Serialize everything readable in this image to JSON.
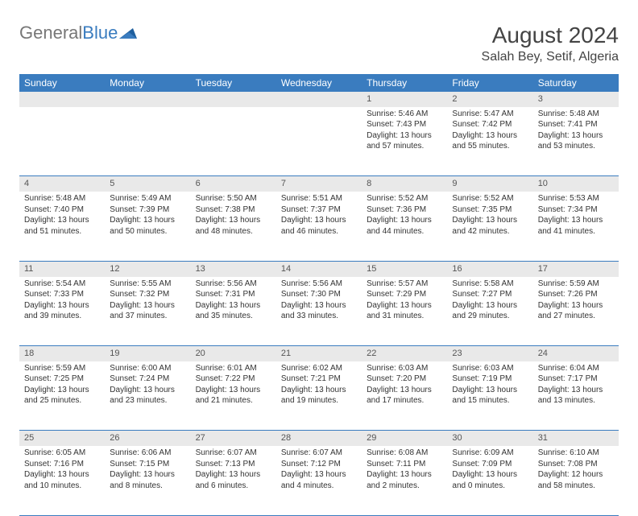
{
  "brand": {
    "part1": "General",
    "part2": "Blue"
  },
  "title": "August 2024",
  "location": "Salah Bey, Setif, Algeria",
  "colors": {
    "header_bg": "#3a7cbf",
    "header_fg": "#ffffff",
    "daynum_bg": "#e9e9e9",
    "rule": "#3a7cbf",
    "text": "#333333",
    "background": "#ffffff"
  },
  "day_headers": [
    "Sunday",
    "Monday",
    "Tuesday",
    "Wednesday",
    "Thursday",
    "Friday",
    "Saturday"
  ],
  "weeks": [
    {
      "nums": [
        "",
        "",
        "",
        "",
        "1",
        "2",
        "3"
      ],
      "cells": [
        null,
        null,
        null,
        null,
        {
          "sunrise": "5:46 AM",
          "sunset": "7:43 PM",
          "daylight": "13 hours and 57 minutes."
        },
        {
          "sunrise": "5:47 AM",
          "sunset": "7:42 PM",
          "daylight": "13 hours and 55 minutes."
        },
        {
          "sunrise": "5:48 AM",
          "sunset": "7:41 PM",
          "daylight": "13 hours and 53 minutes."
        }
      ]
    },
    {
      "nums": [
        "4",
        "5",
        "6",
        "7",
        "8",
        "9",
        "10"
      ],
      "cells": [
        {
          "sunrise": "5:48 AM",
          "sunset": "7:40 PM",
          "daylight": "13 hours and 51 minutes."
        },
        {
          "sunrise": "5:49 AM",
          "sunset": "7:39 PM",
          "daylight": "13 hours and 50 minutes."
        },
        {
          "sunrise": "5:50 AM",
          "sunset": "7:38 PM",
          "daylight": "13 hours and 48 minutes."
        },
        {
          "sunrise": "5:51 AM",
          "sunset": "7:37 PM",
          "daylight": "13 hours and 46 minutes."
        },
        {
          "sunrise": "5:52 AM",
          "sunset": "7:36 PM",
          "daylight": "13 hours and 44 minutes."
        },
        {
          "sunrise": "5:52 AM",
          "sunset": "7:35 PM",
          "daylight": "13 hours and 42 minutes."
        },
        {
          "sunrise": "5:53 AM",
          "sunset": "7:34 PM",
          "daylight": "13 hours and 41 minutes."
        }
      ]
    },
    {
      "nums": [
        "11",
        "12",
        "13",
        "14",
        "15",
        "16",
        "17"
      ],
      "cells": [
        {
          "sunrise": "5:54 AM",
          "sunset": "7:33 PM",
          "daylight": "13 hours and 39 minutes."
        },
        {
          "sunrise": "5:55 AM",
          "sunset": "7:32 PM",
          "daylight": "13 hours and 37 minutes."
        },
        {
          "sunrise": "5:56 AM",
          "sunset": "7:31 PM",
          "daylight": "13 hours and 35 minutes."
        },
        {
          "sunrise": "5:56 AM",
          "sunset": "7:30 PM",
          "daylight": "13 hours and 33 minutes."
        },
        {
          "sunrise": "5:57 AM",
          "sunset": "7:29 PM",
          "daylight": "13 hours and 31 minutes."
        },
        {
          "sunrise": "5:58 AM",
          "sunset": "7:27 PM",
          "daylight": "13 hours and 29 minutes."
        },
        {
          "sunrise": "5:59 AM",
          "sunset": "7:26 PM",
          "daylight": "13 hours and 27 minutes."
        }
      ]
    },
    {
      "nums": [
        "18",
        "19",
        "20",
        "21",
        "22",
        "23",
        "24"
      ],
      "cells": [
        {
          "sunrise": "5:59 AM",
          "sunset": "7:25 PM",
          "daylight": "13 hours and 25 minutes."
        },
        {
          "sunrise": "6:00 AM",
          "sunset": "7:24 PM",
          "daylight": "13 hours and 23 minutes."
        },
        {
          "sunrise": "6:01 AM",
          "sunset": "7:22 PM",
          "daylight": "13 hours and 21 minutes."
        },
        {
          "sunrise": "6:02 AM",
          "sunset": "7:21 PM",
          "daylight": "13 hours and 19 minutes."
        },
        {
          "sunrise": "6:03 AM",
          "sunset": "7:20 PM",
          "daylight": "13 hours and 17 minutes."
        },
        {
          "sunrise": "6:03 AM",
          "sunset": "7:19 PM",
          "daylight": "13 hours and 15 minutes."
        },
        {
          "sunrise": "6:04 AM",
          "sunset": "7:17 PM",
          "daylight": "13 hours and 13 minutes."
        }
      ]
    },
    {
      "nums": [
        "25",
        "26",
        "27",
        "28",
        "29",
        "30",
        "31"
      ],
      "cells": [
        {
          "sunrise": "6:05 AM",
          "sunset": "7:16 PM",
          "daylight": "13 hours and 10 minutes."
        },
        {
          "sunrise": "6:06 AM",
          "sunset": "7:15 PM",
          "daylight": "13 hours and 8 minutes."
        },
        {
          "sunrise": "6:07 AM",
          "sunset": "7:13 PM",
          "daylight": "13 hours and 6 minutes."
        },
        {
          "sunrise": "6:07 AM",
          "sunset": "7:12 PM",
          "daylight": "13 hours and 4 minutes."
        },
        {
          "sunrise": "6:08 AM",
          "sunset": "7:11 PM",
          "daylight": "13 hours and 2 minutes."
        },
        {
          "sunrise": "6:09 AM",
          "sunset": "7:09 PM",
          "daylight": "13 hours and 0 minutes."
        },
        {
          "sunrise": "6:10 AM",
          "sunset": "7:08 PM",
          "daylight": "12 hours and 58 minutes."
        }
      ]
    }
  ],
  "labels": {
    "sunrise_prefix": "Sunrise: ",
    "sunset_prefix": "Sunset: ",
    "daylight_prefix": "Daylight: "
  }
}
